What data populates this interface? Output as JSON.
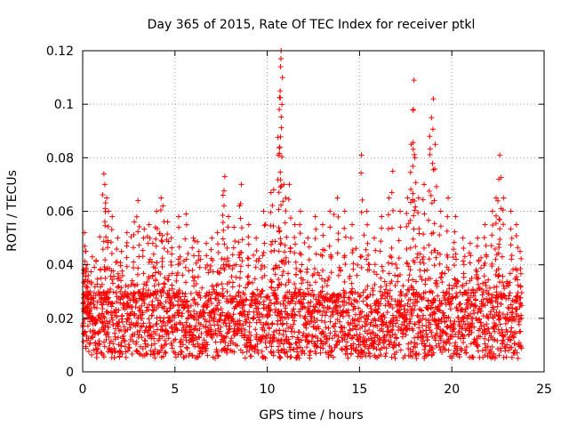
{
  "chart_data": {
    "type": "scatter",
    "title": "Day 365 of 2015, Rate Of TEC Index for receiver ptkl",
    "xlabel": "GPS time / hours",
    "ylabel": "ROTI / TECUs",
    "xlim": [
      0,
      25
    ],
    "ylim": [
      0,
      0.12
    ],
    "xticks": [
      0,
      5,
      10,
      15,
      20,
      25
    ],
    "xtick_labels": [
      "0",
      "5",
      "10",
      "15",
      "20",
      "25"
    ],
    "yticks": [
      0,
      0.02,
      0.04,
      0.06,
      0.08,
      0.1,
      0.12
    ],
    "ytick_labels": [
      "0",
      "0.02",
      "0.04",
      "0.06",
      "0.08",
      "0.1",
      "0.12"
    ],
    "grid": true,
    "marker": "plus",
    "color": "#ff0000",
    "series": [
      {
        "name": "ROTI",
        "points": [
          [
            0.05,
            0.029
          ],
          [
            0.1,
            0.052
          ],
          [
            0.15,
            0.045
          ],
          [
            0.2,
            0.038
          ],
          [
            0.3,
            0.036
          ],
          [
            0.4,
            0.03
          ],
          [
            0.5,
            0.02
          ],
          [
            0.7,
            0.018
          ],
          [
            1.0,
            0.035
          ],
          [
            1.15,
            0.074
          ],
          [
            1.2,
            0.07
          ],
          [
            1.3,
            0.065
          ],
          [
            1.4,
            0.06
          ],
          [
            1.6,
            0.058
          ],
          [
            1.9,
            0.05
          ],
          [
            2.1,
            0.045
          ],
          [
            2.4,
            0.052
          ],
          [
            2.8,
            0.056
          ],
          [
            3.0,
            0.064
          ],
          [
            3.3,
            0.05
          ],
          [
            3.6,
            0.055
          ],
          [
            3.8,
            0.048
          ],
          [
            4.0,
            0.06
          ],
          [
            4.25,
            0.065
          ],
          [
            4.35,
            0.062
          ],
          [
            4.6,
            0.056
          ],
          [
            4.8,
            0.05
          ],
          [
            5.2,
            0.058
          ],
          [
            5.6,
            0.059
          ],
          [
            6.0,
            0.05
          ],
          [
            6.3,
            0.045
          ],
          [
            6.7,
            0.048
          ],
          [
            7.0,
            0.05
          ],
          [
            7.3,
            0.052
          ],
          [
            7.6,
            0.066
          ],
          [
            7.7,
            0.073
          ],
          [
            7.9,
            0.058
          ],
          [
            8.2,
            0.054
          ],
          [
            8.5,
            0.062
          ],
          [
            8.6,
            0.07
          ],
          [
            9.0,
            0.055
          ],
          [
            9.4,
            0.05
          ],
          [
            9.8,
            0.06
          ],
          [
            10.2,
            0.067
          ],
          [
            10.35,
            0.068
          ],
          [
            10.6,
            0.081
          ],
          [
            10.65,
            0.098
          ],
          [
            10.7,
            0.105
          ],
          [
            10.72,
            0.114
          ],
          [
            10.74,
            0.117
          ],
          [
            10.75,
            0.12
          ],
          [
            10.9,
            0.07
          ],
          [
            11.0,
            0.065
          ],
          [
            11.2,
            0.07
          ],
          [
            11.5,
            0.055
          ],
          [
            11.8,
            0.06
          ],
          [
            12.2,
            0.05
          ],
          [
            12.6,
            0.058
          ],
          [
            13.0,
            0.055
          ],
          [
            13.4,
            0.06
          ],
          [
            13.8,
            0.065
          ],
          [
            14.2,
            0.06
          ],
          [
            14.6,
            0.055
          ],
          [
            15.1,
            0.081
          ],
          [
            15.4,
            0.06
          ],
          [
            15.8,
            0.05
          ],
          [
            16.2,
            0.058
          ],
          [
            16.6,
            0.065
          ],
          [
            16.8,
            0.075
          ],
          [
            17.2,
            0.06
          ],
          [
            17.6,
            0.065
          ],
          [
            17.8,
            0.085
          ],
          [
            17.9,
            0.098
          ],
          [
            17.95,
            0.109
          ],
          [
            18.0,
            0.08
          ],
          [
            18.2,
            0.065
          ],
          [
            18.5,
            0.07
          ],
          [
            18.8,
            0.088
          ],
          [
            18.9,
            0.095
          ],
          [
            19.0,
            0.102
          ],
          [
            19.1,
            0.085
          ],
          [
            19.4,
            0.06
          ],
          [
            19.8,
            0.065
          ],
          [
            20.2,
            0.058
          ],
          [
            20.6,
            0.05
          ],
          [
            21.0,
            0.048
          ],
          [
            21.4,
            0.05
          ],
          [
            21.8,
            0.055
          ],
          [
            22.2,
            0.06
          ],
          [
            22.4,
            0.065
          ],
          [
            22.55,
            0.072
          ],
          [
            22.6,
            0.081
          ],
          [
            22.8,
            0.065
          ],
          [
            23.2,
            0.06
          ],
          [
            23.5,
            0.055
          ],
          [
            23.7,
            0.045
          ]
        ],
        "dense_band": {
          "note": "thousands of points forming a dense band across the day",
          "x_range": [
            0,
            23.8
          ],
          "y_base_range": [
            0.005,
            0.03
          ]
        }
      }
    ]
  }
}
